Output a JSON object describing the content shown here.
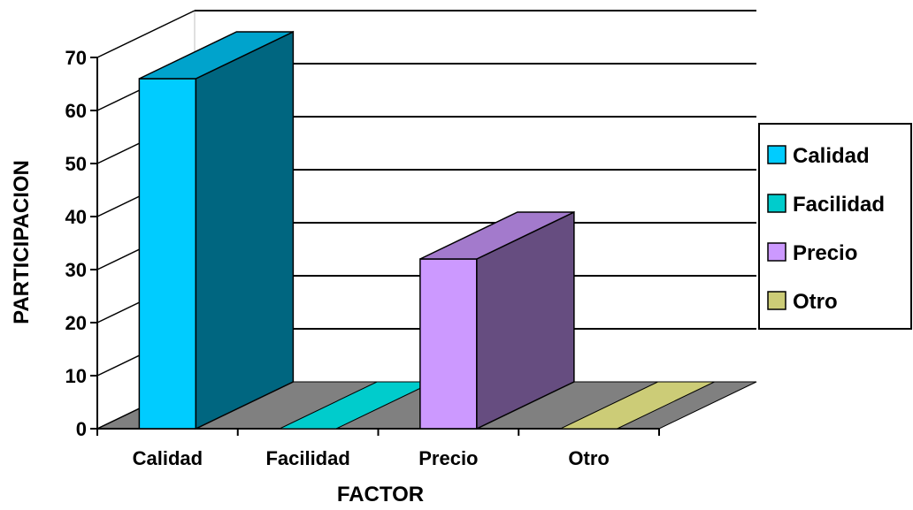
{
  "chart_data": {
    "type": "bar",
    "title": "",
    "xlabel": "FACTOR",
    "ylabel": "PARTICIPACION",
    "ylim": [
      0,
      70
    ],
    "yticks": [
      0,
      10,
      20,
      30,
      40,
      50,
      60,
      70
    ],
    "grid": true,
    "three_d": true,
    "legend_position": "right",
    "categories": [
      "Calidad",
      "Facilidad",
      "Precio",
      "Otro"
    ],
    "values": [
      66,
      0,
      32,
      0
    ],
    "colors": {
      "Calidad": "#00CCFF",
      "Facilidad": "#00CCCC",
      "Precio": "#CC99FF",
      "Otro": "#CCCC77"
    },
    "legend": [
      "Calidad",
      "Facilidad",
      "Precio",
      "Otro"
    ]
  }
}
